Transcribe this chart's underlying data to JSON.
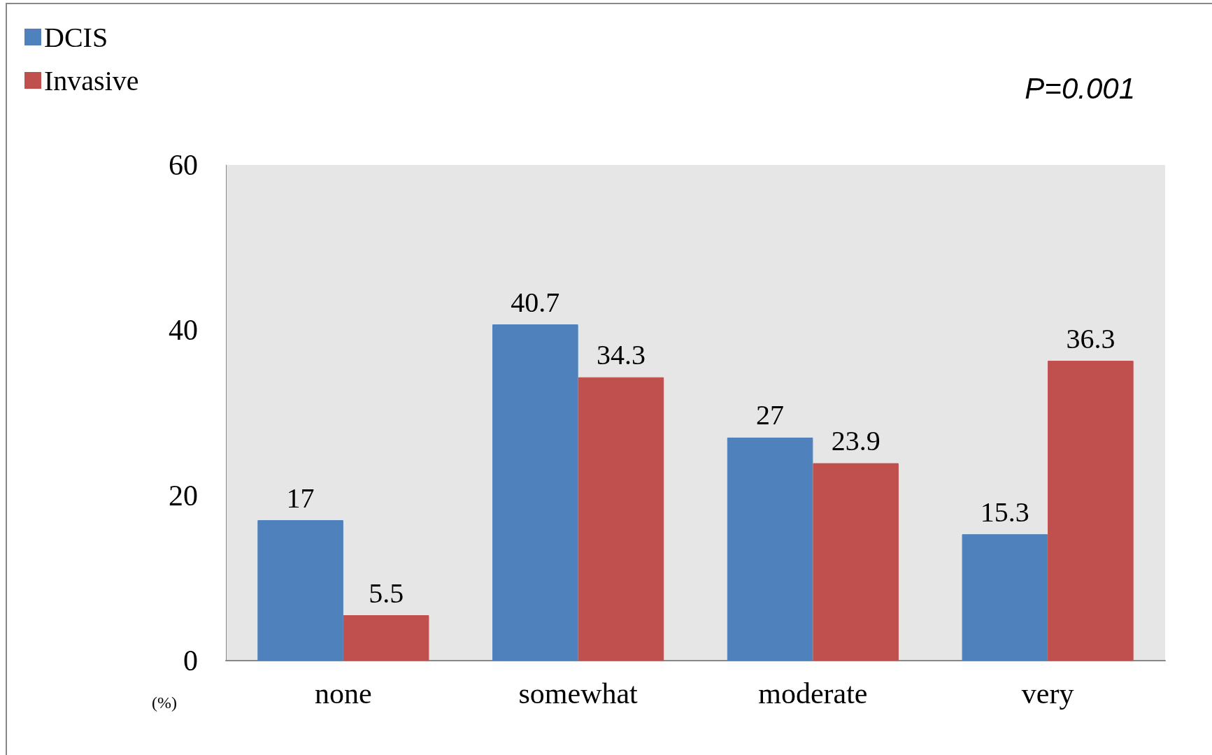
{
  "chart_data": {
    "type": "bar",
    "ylabel": "(%)",
    "annotations": [
      "P=0.001"
    ],
    "categories": [
      "none",
      "somewhat",
      "moderate",
      "very"
    ],
    "series": [
      {
        "name": "DCIS",
        "color": "#4f81bd",
        "values": [
          17,
          40.7,
          27,
          15.3
        ]
      },
      {
        "name": "Invasive",
        "color": "#c0504d",
        "values": [
          5.5,
          34.3,
          23.9,
          36.3
        ]
      }
    ],
    "ylim": [
      0,
      60
    ],
    "yticks": [
      0,
      20,
      40,
      60
    ],
    "grid": false,
    "legend": "top left",
    "data_labels": true
  }
}
